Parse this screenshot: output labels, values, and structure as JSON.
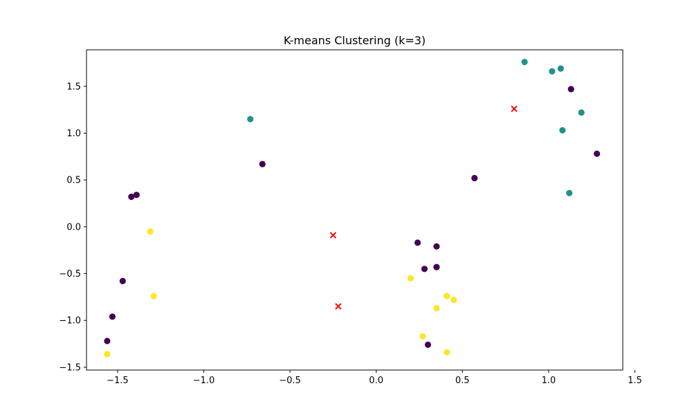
{
  "chart_data": {
    "type": "scatter",
    "title": "K-means Clustering (k=3)",
    "xlabel": "",
    "ylabel": "",
    "xlim": [
      -1.68,
      1.43
    ],
    "ylim": [
      -1.53,
      1.89
    ],
    "xticks": [
      -1.5,
      -1.0,
      -0.5,
      0.0,
      0.5,
      1.0,
      1.5
    ],
    "yticks": [
      -1.5,
      -1.0,
      -0.5,
      0.0,
      0.5,
      1.0,
      1.5
    ],
    "xtick_labels": [
      "−1.5",
      "−1.0",
      "−0.5",
      "0.0",
      "0.5",
      "1.0",
      "1.5"
    ],
    "ytick_labels": [
      "−1.5",
      "−1.0",
      "−0.5",
      "0.0",
      "0.5",
      "1.0",
      "1.5"
    ],
    "grid": false,
    "series": [
      {
        "color": "#440154",
        "points": [
          [
            1.13,
            1.47
          ],
          [
            1.28,
            0.78
          ],
          [
            0.57,
            0.52
          ],
          [
            -0.66,
            0.67
          ],
          [
            -1.39,
            0.34
          ],
          [
            -1.42,
            0.32
          ],
          [
            0.24,
            -0.17
          ],
          [
            0.35,
            -0.21
          ],
          [
            0.35,
            -0.43
          ],
          [
            0.28,
            -0.45
          ],
          [
            -1.47,
            -0.58
          ],
          [
            -1.53,
            -0.96
          ],
          [
            -1.56,
            -1.22
          ],
          [
            0.3,
            -1.26
          ]
        ]
      },
      {
        "color": "#21918c",
        "points": [
          [
            0.86,
            1.76
          ],
          [
            1.02,
            1.66
          ],
          [
            1.07,
            1.69
          ],
          [
            1.19,
            1.22
          ],
          [
            1.08,
            1.03
          ],
          [
            1.12,
            0.36
          ],
          [
            -0.73,
            1.15
          ]
        ]
      },
      {
        "color": "#fde725",
        "points": [
          [
            -1.31,
            -0.05
          ],
          [
            -1.29,
            -0.74
          ],
          [
            0.2,
            -0.55
          ],
          [
            0.41,
            -0.74
          ],
          [
            0.45,
            -0.78
          ],
          [
            0.35,
            -0.87
          ],
          [
            0.27,
            -1.17
          ],
          [
            0.41,
            -1.34
          ],
          [
            -1.56,
            -1.36
          ]
        ]
      }
    ],
    "centroids": {
      "marker": "x",
      "color": "#ff0000",
      "points": [
        [
          0.8,
          1.26
        ],
        [
          -0.25,
          -0.09
        ],
        [
          -0.22,
          -0.85
        ]
      ]
    }
  }
}
